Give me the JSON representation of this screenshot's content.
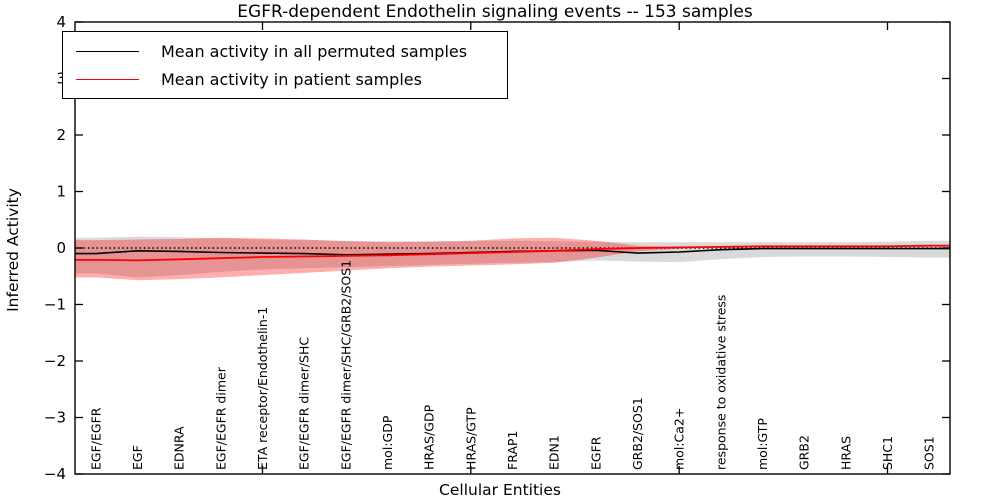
{
  "figure": {
    "title": "EGFR-dependent Endothelin signaling events -- 153 samples"
  },
  "chart_data": {
    "type": "line",
    "title": "EGFR-dependent Endothelin signaling events -- 153 samples",
    "xlabel": "Cellular Entities",
    "ylabel": "Inferred Activity",
    "ylim": [
      -4,
      4
    ],
    "yticks": [
      -4,
      -3,
      -2,
      -1,
      0,
      1,
      2,
      3,
      4
    ],
    "grid": false,
    "legend_position": "upper left",
    "zero_line": {
      "y": 0,
      "style": "dotted",
      "color": "#000000"
    },
    "xtick_mark_indices": [
      4,
      9,
      14,
      19
    ],
    "categories": [
      "EGF/EGFR",
      "EGF",
      "EDNRA",
      "EGF/EGFR dimer",
      "ETA receptor/Endothelin-1",
      "EGF/EGFR dimer/SHC",
      "EGF/EGFR dimer/SHC/GRB2/SOS1",
      "mol:GDP",
      "HRAS/GDP",
      "HRAS/GTP",
      "FRAP1",
      "EDN1",
      "EGFR",
      "GRB2/SOS1",
      "mol:Ca2+",
      "response to oxidative stress",
      "mol:GTP",
      "GRB2",
      "HRAS",
      "SHC1",
      "SOS1"
    ],
    "series": [
      {
        "name": "Mean activity in all permuted samples",
        "color": "#000000",
        "values": [
          -0.1,
          -0.05,
          -0.06,
          -0.08,
          -0.09,
          -0.1,
          -0.12,
          -0.11,
          -0.1,
          -0.08,
          -0.06,
          -0.05,
          -0.04,
          -0.09,
          -0.07,
          -0.03,
          -0.01,
          -0.01,
          -0.01,
          -0.01,
          -0.01
        ],
        "band_upper": [
          0.18,
          0.2,
          0.19,
          0.17,
          0.15,
          0.14,
          0.13,
          0.12,
          0.12,
          0.12,
          0.13,
          0.12,
          0.11,
          0.1,
          0.1,
          0.1,
          0.1,
          0.1,
          0.1,
          0.11,
          0.13
        ],
        "band_lower": [
          -0.45,
          -0.52,
          -0.48,
          -0.42,
          -0.38,
          -0.36,
          -0.34,
          -0.32,
          -0.3,
          -0.28,
          -0.26,
          -0.25,
          -0.22,
          -0.24,
          -0.25,
          -0.2,
          -0.16,
          -0.15,
          -0.15,
          -0.16,
          -0.17
        ],
        "band_color": "#808080",
        "band_alpha": 0.3
      },
      {
        "name": "Mean activity in patient samples",
        "color": "#ff0000",
        "values": [
          -0.21,
          -0.22,
          -0.2,
          -0.18,
          -0.16,
          -0.15,
          -0.14,
          -0.13,
          -0.11,
          -0.09,
          -0.07,
          -0.05,
          -0.02,
          0.0,
          0.01,
          0.02,
          0.03,
          0.03,
          0.03,
          0.03,
          0.04
        ],
        "band_upper": [
          0.14,
          0.15,
          0.16,
          0.18,
          0.17,
          0.15,
          0.12,
          0.1,
          0.11,
          0.13,
          0.17,
          0.18,
          0.13,
          0.04,
          0.02,
          0.02,
          0.03,
          0.03,
          0.03,
          0.03,
          0.04
        ],
        "band_lower": [
          -0.52,
          -0.57,
          -0.55,
          -0.52,
          -0.48,
          -0.44,
          -0.4,
          -0.36,
          -0.33,
          -0.31,
          -0.29,
          -0.26,
          -0.17,
          -0.06,
          -0.01,
          0.02,
          0.03,
          0.03,
          0.03,
          0.03,
          0.04
        ],
        "band_color": "#ff0000",
        "band_alpha": 0.32
      }
    ]
  }
}
